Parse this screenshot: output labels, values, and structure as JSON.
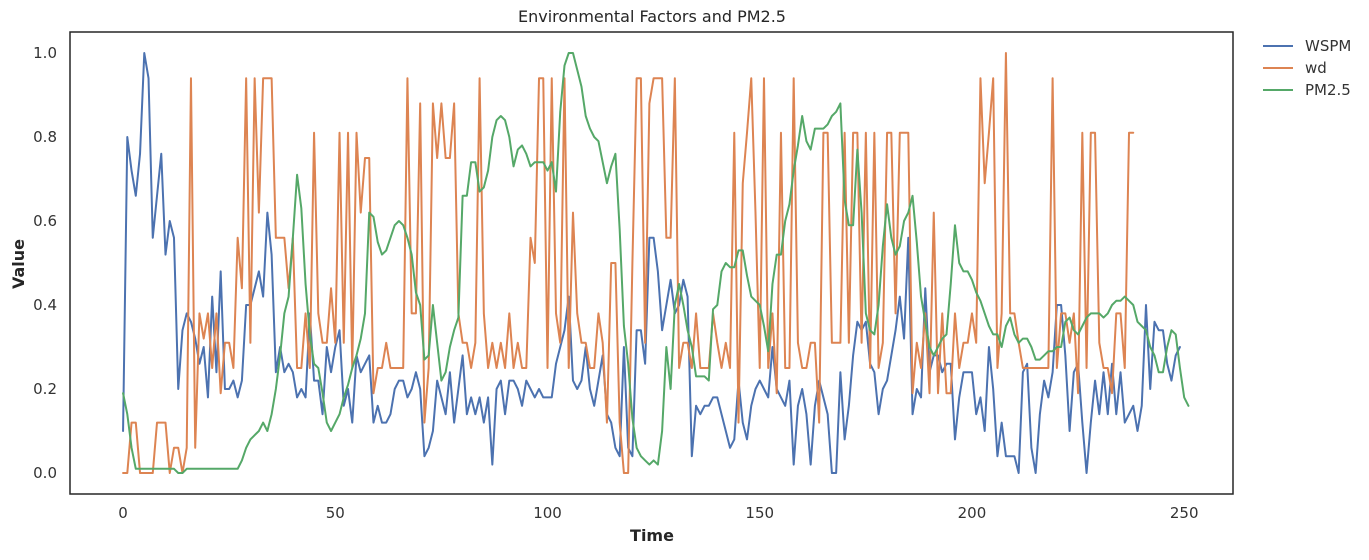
{
  "chart_data": {
    "type": "line",
    "title": "Environmental Factors and PM2.5",
    "xlabel": "Time",
    "ylabel": "Value",
    "xlim": [
      -12.5,
      261.5
    ],
    "ylim": [
      -0.05,
      1.05
    ],
    "xticks": [
      0,
      50,
      100,
      150,
      200,
      250
    ],
    "yticks": [
      0.0,
      0.2,
      0.4,
      0.6,
      0.8,
      1.0
    ],
    "xtick_labels": [
      "0",
      "50",
      "100",
      "150",
      "200",
      "250"
    ],
    "ytick_labels": [
      "0.0",
      "0.2",
      "0.4",
      "0.6",
      "0.8",
      "1.0"
    ],
    "grid": false,
    "legend_position": "outside-top-right",
    "x_start": 0,
    "series": [
      {
        "name": "WSPM",
        "color": "#4c72b0",
        "values": [
          0.1,
          0.8,
          0.72,
          0.66,
          0.76,
          1.0,
          0.94,
          0.56,
          0.66,
          0.76,
          0.52,
          0.6,
          0.56,
          0.2,
          0.34,
          0.38,
          0.36,
          0.32,
          0.26,
          0.3,
          0.18,
          0.42,
          0.24,
          0.48,
          0.2,
          0.2,
          0.22,
          0.18,
          0.22,
          0.4,
          0.4,
          0.44,
          0.48,
          0.42,
          0.62,
          0.52,
          0.24,
          0.3,
          0.24,
          0.26,
          0.24,
          0.18,
          0.2,
          0.18,
          0.38,
          0.22,
          0.22,
          0.14,
          0.3,
          0.24,
          0.3,
          0.34,
          0.16,
          0.2,
          0.12,
          0.28,
          0.24,
          0.26,
          0.28,
          0.12,
          0.16,
          0.12,
          0.12,
          0.14,
          0.2,
          0.22,
          0.22,
          0.18,
          0.2,
          0.24,
          0.2,
          0.04,
          0.06,
          0.1,
          0.22,
          0.18,
          0.14,
          0.24,
          0.12,
          0.2,
          0.28,
          0.14,
          0.18,
          0.14,
          0.18,
          0.12,
          0.18,
          0.02,
          0.2,
          0.22,
          0.14,
          0.22,
          0.22,
          0.2,
          0.16,
          0.22,
          0.2,
          0.18,
          0.2,
          0.18,
          0.18,
          0.18,
          0.26,
          0.3,
          0.34,
          0.42,
          0.22,
          0.2,
          0.22,
          0.3,
          0.2,
          0.16,
          0.22,
          0.28,
          0.14,
          0.12,
          0.06,
          0.04,
          0.3,
          0.06,
          0.04,
          0.34,
          0.34,
          0.26,
          0.56,
          0.56,
          0.48,
          0.34,
          0.4,
          0.46,
          0.38,
          0.4,
          0.46,
          0.42,
          0.04,
          0.16,
          0.14,
          0.16,
          0.16,
          0.18,
          0.18,
          0.14,
          0.1,
          0.06,
          0.08,
          0.22,
          0.12,
          0.08,
          0.16,
          0.2,
          0.22,
          0.2,
          0.18,
          0.3,
          0.2,
          0.18,
          0.16,
          0.22,
          0.02,
          0.16,
          0.2,
          0.14,
          0.02,
          0.16,
          0.22,
          0.18,
          0.14,
          0.0,
          0.0,
          0.24,
          0.08,
          0.16,
          0.28,
          0.36,
          0.34,
          0.36,
          0.26,
          0.24,
          0.14,
          0.2,
          0.22,
          0.28,
          0.34,
          0.42,
          0.32,
          0.56,
          0.14,
          0.2,
          0.18,
          0.44,
          0.24,
          0.28,
          0.28,
          0.24,
          0.26,
          0.26,
          0.08,
          0.18,
          0.24,
          0.24,
          0.24,
          0.14,
          0.18,
          0.1,
          0.3,
          0.2,
          0.04,
          0.12,
          0.04,
          0.04,
          0.04,
          0.0,
          0.24,
          0.26,
          0.06,
          0.0,
          0.14,
          0.22,
          0.18,
          0.24,
          0.4,
          0.4,
          0.28,
          0.1,
          0.24,
          0.26,
          0.12,
          0.0,
          0.12,
          0.22,
          0.14,
          0.24,
          0.14,
          0.26,
          0.14,
          0.24,
          0.12,
          0.14,
          0.16,
          0.1,
          0.16,
          0.4,
          0.2,
          0.36,
          0.34,
          0.34,
          0.26,
          0.22,
          0.28,
          0.3
        ]
      },
      {
        "name": "wd",
        "color": "#dd8452",
        "values": [
          0.0,
          0.0,
          0.12,
          0.12,
          0.0,
          0.0,
          0.0,
          0.0,
          0.12,
          0.12,
          0.12,
          0.0,
          0.06,
          0.06,
          0.0,
          0.06,
          0.94,
          0.06,
          0.38,
          0.32,
          0.38,
          0.25,
          0.38,
          0.19,
          0.31,
          0.31,
          0.25,
          0.56,
          0.44,
          0.94,
          0.31,
          0.94,
          0.62,
          0.94,
          0.94,
          0.94,
          0.56,
          0.56,
          0.56,
          0.44,
          0.56,
          0.25,
          0.25,
          0.38,
          0.25,
          0.81,
          0.38,
          0.31,
          0.31,
          0.44,
          0.31,
          0.81,
          0.31,
          0.81,
          0.25,
          0.81,
          0.62,
          0.75,
          0.75,
          0.19,
          0.25,
          0.25,
          0.31,
          0.25,
          0.25,
          0.25,
          0.25,
          0.94,
          0.38,
          0.38,
          0.88,
          0.12,
          0.25,
          0.88,
          0.75,
          0.88,
          0.75,
          0.75,
          0.88,
          0.38,
          0.31,
          0.31,
          0.25,
          0.31,
          0.94,
          0.38,
          0.25,
          0.31,
          0.25,
          0.31,
          0.25,
          0.38,
          0.25,
          0.31,
          0.25,
          0.25,
          0.56,
          0.5,
          0.94,
          0.94,
          0.25,
          0.94,
          0.38,
          0.31,
          0.94,
          0.25,
          0.62,
          0.38,
          0.31,
          0.31,
          0.25,
          0.25,
          0.38,
          0.31,
          0.12,
          0.5,
          0.5,
          0.12,
          0.0,
          0.0,
          0.5,
          0.94,
          0.94,
          0.31,
          0.88,
          0.94,
          0.94,
          0.94,
          0.56,
          0.56,
          0.94,
          0.25,
          0.31,
          0.31,
          0.25,
          0.38,
          0.25,
          0.25,
          0.25,
          0.38,
          0.31,
          0.25,
          0.31,
          0.25,
          0.81,
          0.12,
          0.69,
          0.81,
          0.94,
          0.62,
          0.25,
          0.94,
          0.25,
          0.38,
          0.19,
          0.81,
          0.25,
          0.25,
          0.94,
          0.31,
          0.25,
          0.25,
          0.31,
          0.31,
          0.12,
          0.81,
          0.81,
          0.31,
          0.31,
          0.31,
          0.81,
          0.31,
          0.81,
          0.81,
          0.31,
          0.81,
          0.25,
          0.81,
          0.25,
          0.31,
          0.81,
          0.81,
          0.38,
          0.81,
          0.81,
          0.81,
          0.19,
          0.31,
          0.25,
          0.38,
          0.19,
          0.62,
          0.19,
          0.38,
          0.19,
          0.19,
          0.38,
          0.25,
          0.31,
          0.31,
          0.38,
          0.31,
          0.94,
          0.69,
          0.81,
          0.94,
          0.25,
          0.38,
          1.0,
          0.38,
          0.38,
          0.31,
          0.25,
          0.25,
          0.25,
          0.25,
          0.25,
          0.25,
          0.25,
          0.94,
          0.25,
          0.38,
          0.38,
          0.31,
          0.38,
          0.19,
          0.81,
          0.25,
          0.81,
          0.81,
          0.31,
          0.25,
          0.25,
          0.19,
          0.38,
          0.38,
          0.25,
          0.81,
          0.81
        ]
      },
      {
        "name": "PM2.5",
        "color": "#55a868",
        "values": [
          0.19,
          0.14,
          0.06,
          0.01,
          0.01,
          0.01,
          0.01,
          0.01,
          0.01,
          0.01,
          0.01,
          0.01,
          0.01,
          0.0,
          0.0,
          0.01,
          0.01,
          0.01,
          0.01,
          0.01,
          0.01,
          0.01,
          0.01,
          0.01,
          0.01,
          0.01,
          0.01,
          0.01,
          0.03,
          0.06,
          0.08,
          0.09,
          0.1,
          0.12,
          0.1,
          0.14,
          0.2,
          0.28,
          0.38,
          0.42,
          0.56,
          0.71,
          0.63,
          0.45,
          0.33,
          0.26,
          0.25,
          0.19,
          0.12,
          0.1,
          0.12,
          0.14,
          0.18,
          0.21,
          0.25,
          0.28,
          0.32,
          0.38,
          0.62,
          0.61,
          0.55,
          0.52,
          0.53,
          0.56,
          0.59,
          0.6,
          0.59,
          0.56,
          0.52,
          0.43,
          0.4,
          0.27,
          0.28,
          0.4,
          0.31,
          0.22,
          0.24,
          0.3,
          0.34,
          0.37,
          0.66,
          0.66,
          0.74,
          0.74,
          0.67,
          0.68,
          0.72,
          0.8,
          0.84,
          0.85,
          0.84,
          0.8,
          0.73,
          0.77,
          0.78,
          0.76,
          0.73,
          0.74,
          0.74,
          0.74,
          0.72,
          0.74,
          0.67,
          0.86,
          0.97,
          1.0,
          1.0,
          0.96,
          0.92,
          0.85,
          0.82,
          0.8,
          0.79,
          0.74,
          0.69,
          0.73,
          0.76,
          0.58,
          0.35,
          0.26,
          0.13,
          0.06,
          0.04,
          0.03,
          0.02,
          0.03,
          0.02,
          0.1,
          0.3,
          0.2,
          0.4,
          0.45,
          0.4,
          0.34,
          0.3,
          0.23,
          0.23,
          0.23,
          0.22,
          0.39,
          0.4,
          0.48,
          0.5,
          0.49,
          0.49,
          0.53,
          0.53,
          0.47,
          0.42,
          0.41,
          0.4,
          0.35,
          0.29,
          0.45,
          0.52,
          0.52,
          0.6,
          0.64,
          0.72,
          0.78,
          0.85,
          0.79,
          0.77,
          0.82,
          0.82,
          0.82,
          0.83,
          0.85,
          0.86,
          0.88,
          0.65,
          0.59,
          0.59,
          0.77,
          0.62,
          0.38,
          0.34,
          0.33,
          0.4,
          0.54,
          0.64,
          0.56,
          0.52,
          0.54,
          0.6,
          0.62,
          0.66,
          0.55,
          0.42,
          0.36,
          0.3,
          0.28,
          0.3,
          0.32,
          0.33,
          0.45,
          0.59,
          0.5,
          0.48,
          0.48,
          0.46,
          0.43,
          0.41,
          0.38,
          0.35,
          0.33,
          0.33,
          0.3,
          0.35,
          0.37,
          0.33,
          0.31,
          0.32,
          0.32,
          0.3,
          0.27,
          0.27,
          0.28,
          0.29,
          0.29,
          0.3,
          0.3,
          0.36,
          0.37,
          0.34,
          0.33,
          0.35,
          0.37,
          0.38,
          0.38,
          0.38,
          0.37,
          0.38,
          0.4,
          0.41,
          0.41,
          0.42,
          0.41,
          0.4,
          0.36,
          0.35,
          0.34,
          0.3,
          0.28,
          0.24,
          0.24,
          0.3,
          0.34,
          0.33,
          0.25,
          0.18,
          0.16
        ]
      }
    ]
  }
}
